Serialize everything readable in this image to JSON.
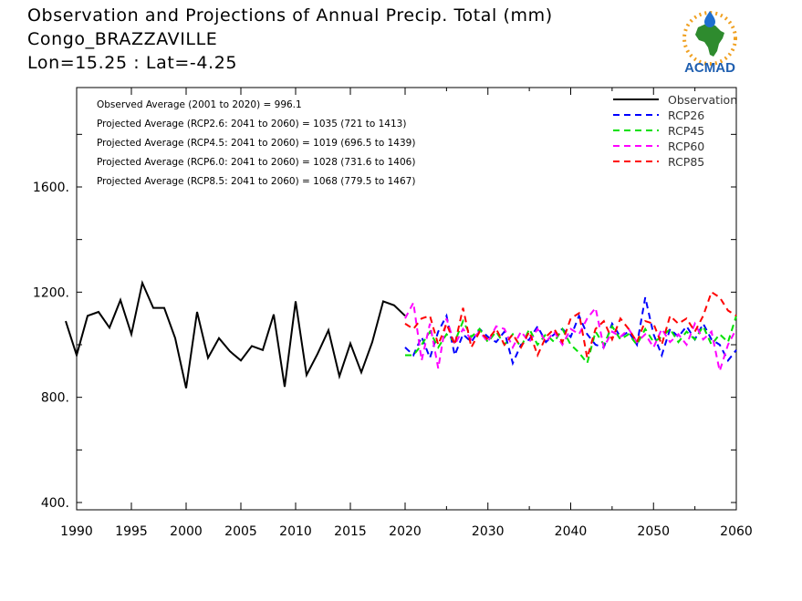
{
  "title": {
    "line1": "Observation and Projections of Annual Precip. Total (mm)",
    "line2": "Congo_BRAZZAVILLE",
    "line3": "Lon=15.25 : Lat=-4.25"
  },
  "logo": {
    "text": "ACMAD",
    "icon": "africa-map-raindrop-logo"
  },
  "colors": {
    "observation": "#000000",
    "RCP26": "#0000ff",
    "RCP45": "#00e000",
    "RCP60": "#ff00ff",
    "RCP85": "#ff0000"
  },
  "annotations": [
    "Observed Average (2001 to 2020) = 996.1",
    "Projected Average (RCP2.6: 2041 to 2060) = 1035 (721 to 1413)",
    "Projected Average (RCP4.5: 2041 to 2060) = 1019 (696.5 to 1439)",
    "Projected Average (RCP6.0: 2041 to 2060) = 1028 (731.6 to 1406)",
    "Projected Average (RCP8.5: 2041 to 2060) = 1068 (779.5 to 1467)"
  ],
  "chart_data": {
    "type": "line",
    "grid": false,
    "legend_position": "top-right",
    "x_range": [
      1989,
      2060
    ],
    "y_range": [
      370,
      2000
    ],
    "y_ticks": [
      "400.",
      "800.",
      "1200.",
      "1600."
    ],
    "y_tick_values": [
      400,
      800,
      1200,
      1600
    ],
    "x_ticks_left": [
      "1990",
      "1995",
      "2000",
      "2005",
      "2010",
      "2015",
      "2020"
    ],
    "x_tick_values_left": [
      1990,
      1995,
      2000,
      2005,
      2010,
      2015,
      2020
    ],
    "x_ticks_right": [
      "2030",
      "2040",
      "2050",
      "2060"
    ],
    "x_tick_values_right": [
      2030,
      2040,
      2050,
      2060
    ],
    "series": [
      {
        "name": "Observation",
        "x": [
          1989,
          1990,
          1991,
          1992,
          1993,
          1994,
          1995,
          1996,
          1997,
          1998,
          1999,
          2000,
          2001,
          2002,
          2003,
          2004,
          2005,
          2006,
          2007,
          2008,
          2009,
          2010,
          2011,
          2012,
          2013,
          2014,
          2015,
          2016,
          2017,
          2018,
          2019,
          2020
        ],
        "values": [
          1090,
          960,
          1110,
          1125,
          1065,
          1170,
          1040,
          1235,
          1140,
          1140,
          1025,
          835,
          1125,
          950,
          1025,
          975,
          940,
          995,
          980,
          1115,
          840,
          1165,
          885,
          965,
          1055,
          880,
          1005,
          895,
          1010,
          1165,
          1150,
          1110
        ]
      },
      {
        "name": "RCP26",
        "x": [
          2020,
          2021,
          2022,
          2023,
          2024,
          2025,
          2026,
          2027,
          2028,
          2029,
          2030,
          2031,
          2032,
          2033,
          2034,
          2035,
          2036,
          2037,
          2038,
          2039,
          2040,
          2041,
          2042,
          2043,
          2044,
          2045,
          2046,
          2047,
          2048,
          2049,
          2050,
          2051,
          2052,
          2053,
          2054,
          2055,
          2056,
          2057,
          2058,
          2059,
          2060
        ],
        "values": [
          990,
          960,
          1030,
          950,
          1050,
          1110,
          960,
          1040,
          1010,
          1060,
          1030,
          1010,
          1050,
          930,
          1000,
          1020,
          1070,
          1010,
          1040,
          1060,
          1030,
          1110,
          1040,
          1000,
          990,
          1080,
          1030,
          1050,
          1000,
          1180,
          1040,
          960,
          1060,
          1030,
          1070,
          1020,
          1080,
          1020,
          1000,
          940,
          980
        ]
      },
      {
        "name": "RCP45",
        "x": [
          2020,
          2021,
          2022,
          2023,
          2024,
          2025,
          2026,
          2027,
          2028,
          2029,
          2030,
          2031,
          2032,
          2033,
          2034,
          2035,
          2036,
          2037,
          2038,
          2039,
          2040,
          2041,
          2042,
          2043,
          2044,
          2045,
          2046,
          2047,
          2048,
          2049,
          2050,
          2051,
          2052,
          2053,
          2054,
          2055,
          2056,
          2057,
          2058,
          2059,
          2060
        ],
        "values": [
          960,
          960,
          1000,
          1050,
          990,
          1040,
          1010,
          1090,
          1030,
          1060,
          1010,
          1050,
          1000,
          1040,
          990,
          1060,
          1000,
          1040,
          1010,
          1060,
          1000,
          970,
          930,
          1050,
          1000,
          1070,
          1020,
          1040,
          1000,
          1060,
          1010,
          1030,
          1060,
          1010,
          1050,
          1020,
          1070,
          1000,
          1040,
          1010,
          1110
        ]
      },
      {
        "name": "RCP60",
        "x": [
          2020,
          2021,
          2022,
          2023,
          2024,
          2025,
          2026,
          2027,
          2028,
          2029,
          2030,
          2031,
          2032,
          2033,
          2034,
          2035,
          2036,
          2037,
          2038,
          2039,
          2040,
          2041,
          2042,
          2043,
          2044,
          2045,
          2046,
          2047,
          2048,
          2049,
          2050,
          2051,
          2052,
          2053,
          2054,
          2055,
          2056,
          2057,
          2058,
          2059,
          2060
        ],
        "values": [
          1100,
          1160,
          940,
          1080,
          910,
          1100,
          1000,
          1060,
          1020,
          1050,
          1010,
          1070,
          1060,
          990,
          1050,
          1010,
          1060,
          1010,
          1050,
          1000,
          1060,
          1040,
          1100,
          1140,
          990,
          1050,
          1030,
          1060,
          1010,
          1040,
          990,
          1060,
          1010,
          1040,
          1000,
          1080,
          1020,
          1050,
          900,
          1000,
          1060
        ]
      },
      {
        "name": "RCP85",
        "x": [
          2020,
          2021,
          2022,
          2023,
          2024,
          2025,
          2026,
          2027,
          2028,
          2029,
          2030,
          2031,
          2032,
          2033,
          2034,
          2035,
          2036,
          2037,
          2038,
          2039,
          2040,
          2041,
          2042,
          2043,
          2044,
          2045,
          2046,
          2047,
          2048,
          2049,
          2050,
          2051,
          2052,
          2053,
          2054,
          2055,
          2056,
          2057,
          2058,
          2059,
          2060
        ],
        "values": [
          1080,
          1060,
          1100,
          1110,
          1000,
          1080,
          1000,
          1140,
          990,
          1050,
          1020,
          1060,
          1000,
          1040,
          990,
          1050,
          960,
          1030,
          1060,
          1010,
          1100,
          1120,
          950,
          1060,
          1090,
          1020,
          1100,
          1060,
          1010,
          1090,
          1080,
          1000,
          1110,
          1080,
          1100,
          1050,
          1110,
          1200,
          1180,
          1130,
          1110
        ]
      }
    ]
  }
}
